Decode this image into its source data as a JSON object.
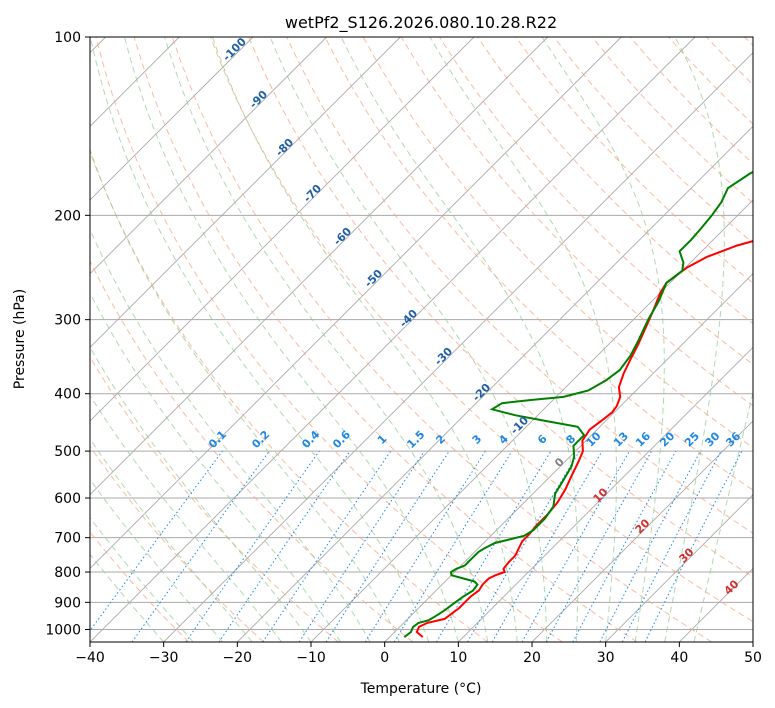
{
  "chart_data": {
    "type": "line",
    "title": "wetPf2_S126.2026.080.10.28.R22",
    "xlabel": "Temperature (°C)",
    "ylabel": "Pressure (hPa)",
    "xlim": [
      -40,
      50
    ],
    "ylim": [
      1050,
      100
    ],
    "y_scale": "log",
    "grid": true,
    "x_ticks": [
      -40,
      -30,
      -20,
      -10,
      0,
      10,
      20,
      30,
      40,
      50
    ],
    "y_ticks": [
      1000,
      900,
      800,
      700,
      600,
      500,
      400,
      300,
      200,
      100
    ],
    "series": [
      {
        "name": "",
        "role": "temperature",
        "color": "#ff0000",
        "points": [
          [
            4.5,
            1030
          ],
          [
            3.0,
            1010
          ],
          [
            2.6,
            990
          ],
          [
            3.2,
            975
          ],
          [
            5.0,
            960
          ],
          [
            5.5,
            920
          ],
          [
            5.5,
            880
          ],
          [
            5.8,
            860
          ],
          [
            5.5,
            840
          ],
          [
            5.5,
            820
          ],
          [
            6.0,
            810
          ],
          [
            6.8,
            800
          ],
          [
            6.2,
            790
          ],
          [
            6.0,
            770
          ],
          [
            6.0,
            750
          ],
          [
            5.5,
            730
          ],
          [
            5.0,
            710
          ],
          [
            5.0,
            690
          ],
          [
            4.8,
            670
          ],
          [
            4.8,
            640
          ],
          [
            4.5,
            610
          ],
          [
            3.8,
            580
          ],
          [
            2.8,
            550
          ],
          [
            1.8,
            520
          ],
          [
            1.0,
            500
          ],
          [
            -0.5,
            480
          ],
          [
            -1.0,
            460
          ],
          [
            -0.5,
            440
          ],
          [
            -0.3,
            430
          ],
          [
            -0.5,
            420
          ],
          [
            -1.3,
            405
          ],
          [
            -2.8,
            390
          ],
          [
            -4.0,
            370
          ],
          [
            -5.0,
            350
          ],
          [
            -6.0,
            330
          ],
          [
            -7.2,
            310
          ],
          [
            -8.5,
            290
          ],
          [
            -10.0,
            270
          ],
          [
            -10.5,
            260
          ],
          [
            -9.8,
            245
          ],
          [
            -8.5,
            235
          ],
          [
            -6.0,
            225
          ],
          [
            -2.0,
            215
          ],
          [
            2.0,
            205
          ],
          [
            5.0,
            198
          ],
          [
            8.0,
            190
          ],
          [
            12.0,
            180
          ],
          [
            16.0,
            170
          ],
          [
            19.0,
            160
          ],
          [
            21.0,
            150
          ],
          [
            23.5,
            140
          ],
          [
            26.5,
            130
          ],
          [
            28.5,
            120
          ],
          [
            29.5,
            115
          ],
          [
            31.0,
            110
          ],
          [
            33.0,
            104
          ],
          [
            34.5,
            100
          ]
        ]
      },
      {
        "name": "",
        "role": "dewpoint",
        "color": "#008000",
        "points": [
          [
            2.0,
            1030
          ],
          [
            2.2,
            1010
          ],
          [
            1.8,
            990
          ],
          [
            2.0,
            975
          ],
          [
            3.0,
            965
          ],
          [
            3.4,
            950
          ],
          [
            3.8,
            930
          ],
          [
            4.2,
            900
          ],
          [
            4.5,
            880
          ],
          [
            5.0,
            860
          ],
          [
            4.8,
            840
          ],
          [
            4.0,
            830
          ],
          [
            2.0,
            820
          ],
          [
            0.0,
            810
          ],
          [
            -0.5,
            800
          ],
          [
            -0.2,
            790
          ],
          [
            0.5,
            780
          ],
          [
            0.5,
            760
          ],
          [
            0.5,
            740
          ],
          [
            0.8,
            730
          ],
          [
            1.5,
            715
          ],
          [
            3.0,
            705
          ],
          [
            4.5,
            695
          ],
          [
            5.0,
            680
          ],
          [
            5.0,
            650
          ],
          [
            4.5,
            620
          ],
          [
            3.0,
            590
          ],
          [
            2.3,
            560
          ],
          [
            1.5,
            530
          ],
          [
            0.5,
            510
          ],
          [
            -1.0,
            490
          ],
          [
            -1.0,
            470
          ],
          [
            -3.0,
            455
          ],
          [
            -8.0,
            445
          ],
          [
            -13.0,
            435
          ],
          [
            -17.0,
            425
          ],
          [
            -16.5,
            415
          ],
          [
            -13.0,
            410
          ],
          [
            -9.0,
            405
          ],
          [
            -6.5,
            395
          ],
          [
            -5.5,
            380
          ],
          [
            -5.0,
            365
          ],
          [
            -5.5,
            345
          ],
          [
            -6.5,
            325
          ],
          [
            -8.0,
            300
          ],
          [
            -9.0,
            280
          ],
          [
            -10.5,
            260
          ],
          [
            -10.0,
            248
          ],
          [
            -11.0,
            240
          ],
          [
            -12.0,
            235
          ],
          [
            -13.0,
            230
          ],
          [
            -13.0,
            220
          ],
          [
            -13.2,
            210
          ],
          [
            -13.5,
            200
          ],
          [
            -14.0,
            190
          ],
          [
            -15.0,
            180
          ],
          [
            -14.0,
            170
          ],
          [
            -12.0,
            160
          ],
          [
            -10.0,
            150
          ],
          [
            -8.0,
            140
          ],
          [
            -6.0,
            130
          ],
          [
            -4.0,
            120
          ],
          [
            -2.0,
            110
          ],
          [
            0.0,
            103
          ],
          [
            1.5,
            100
          ]
        ]
      }
    ],
    "isotherm_spacing": 10,
    "dry_adiabat_labels": [
      "-100",
      "-90",
      "-80",
      "-70",
      "-60",
      "-50",
      "-40",
      "-30",
      "-20",
      "-10"
    ],
    "moist_adiabat_labels": [
      "0",
      "10",
      "20",
      "30",
      "40"
    ],
    "mixing_ratio_labels": [
      "0.1",
      "0.2",
      "0.4",
      "0.6",
      "1",
      "1.5",
      "2",
      "3",
      "4",
      "6",
      "8",
      "10",
      "13",
      "16",
      "20",
      "25",
      "30",
      "36"
    ],
    "mixing_ratio_values": [
      0.1,
      0.2,
      0.4,
      0.6,
      1,
      1.5,
      2,
      3,
      4,
      6,
      8,
      10,
      13,
      16,
      20,
      25,
      30,
      36
    ],
    "colors": {
      "temperature": "#ff0000",
      "dewpoint": "#008000",
      "isotherm": "#aaaaaa",
      "dry_adiabat": "#f4a582",
      "moist_adiabat": "#90c890",
      "mixing_ratio": "#1e88e5",
      "dry_label": "#1f5fa8",
      "moist_label": "#d32f2f",
      "mixing_label": "#1e88e5"
    }
  }
}
